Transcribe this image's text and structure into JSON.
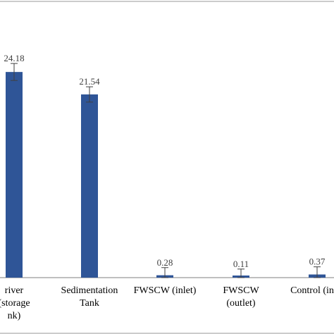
{
  "chart_data": {
    "type": "bar",
    "categories": [
      [
        "river",
        "(storage",
        "nk)"
      ],
      [
        "Sedimentation",
        "Tank"
      ],
      [
        "FWSCW (inlet)"
      ],
      [
        "FWSCW",
        "(outlet)"
      ],
      [
        "Control (inlet"
      ]
    ],
    "values": [
      24.18,
      21.54,
      0.28,
      0.11,
      0.37
    ],
    "value_labels": [
      "24.18",
      "21.54",
      "0.28",
      "0.11",
      "0.37"
    ],
    "errors": [
      1.0,
      0.9,
      0.9,
      0.9,
      0.9
    ],
    "ylim": [
      0,
      28.5
    ],
    "grid": false,
    "colors": {
      "bar": "#2f5597",
      "error_bar": "#404040",
      "text": "#404040"
    }
  }
}
